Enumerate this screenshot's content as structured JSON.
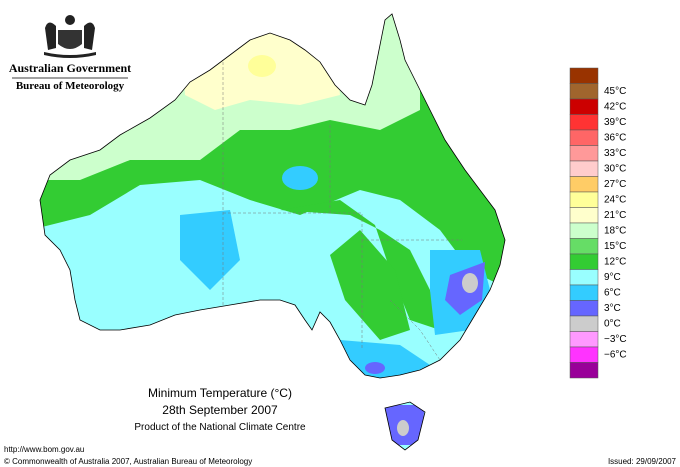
{
  "header": {
    "government": "Australian Government",
    "agency": "Bureau of Meteorology"
  },
  "map": {
    "title": "Minimum Temperature (°C)",
    "date": "28th September 2007",
    "product": "Product of the National Climate Centre"
  },
  "legend": {
    "labels": [
      "45°C",
      "42°C",
      "39°C",
      "36°C",
      "33°C",
      "30°C",
      "27°C",
      "24°C",
      "21°C",
      "18°C",
      "15°C",
      "12°C",
      "9°C",
      "6°C",
      "3°C",
      "0°C",
      "−3°C",
      "−6°C"
    ],
    "colors": [
      "#993300",
      "#a0652d",
      "#cc0000",
      "#ff3333",
      "#ff6666",
      "#ff9999",
      "#ffcccc",
      "#ffcc66",
      "#ffff99",
      "#ffffcc",
      "#ccffcc",
      "#66dd66",
      "#33cc33",
      "#99ffff",
      "#33ccff",
      "#6666ff",
      "#cccccc",
      "#ff99ff",
      "#ff33ff",
      "#990099"
    ]
  },
  "footer": {
    "url": "http://www.bom.gov.au",
    "copyright": "© Commonwealth of Australia 2007, Australian Bureau of Meteorology",
    "issued": "Issued: 29/09/2007"
  }
}
